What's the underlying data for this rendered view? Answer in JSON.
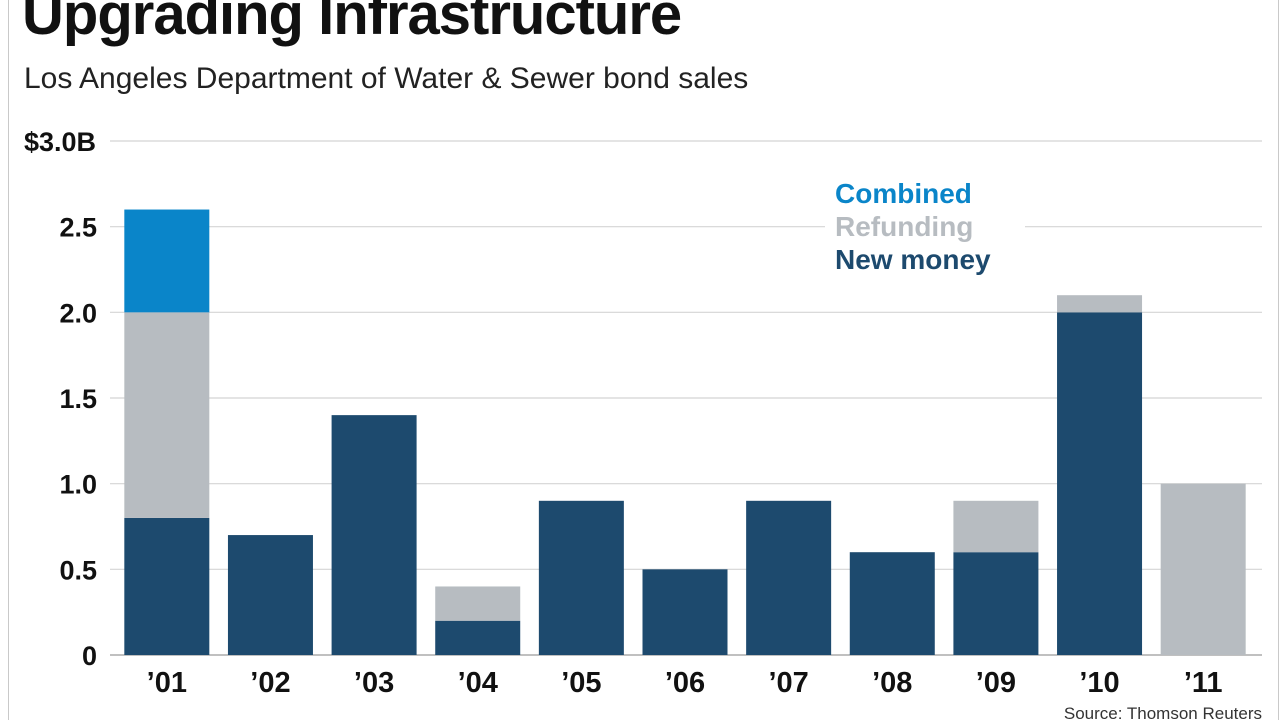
{
  "header": {
    "title": "Upgrading Infrastructure",
    "subtitle": "Los Angeles Department of Water & Sewer bond sales"
  },
  "footer": {
    "source": "Source: Thomson Reuters"
  },
  "colors": {
    "combined": "#0a85c9",
    "refunding": "#b7bcc1",
    "new_money": "#1d4a6e",
    "grid": "#d4d4d4"
  },
  "chart_data": {
    "type": "bar",
    "stacked": true,
    "title": "Upgrading Infrastructure",
    "subtitle": "Los Angeles Department of Water & Sewer bond sales",
    "xlabel": "",
    "ylabel": "",
    "ylim": [
      0,
      3.0
    ],
    "yticks": [
      {
        "value": 0,
        "label": "0"
      },
      {
        "value": 0.5,
        "label": "0.5"
      },
      {
        "value": 1.0,
        "label": "1.0"
      },
      {
        "value": 1.5,
        "label": "1.5"
      },
      {
        "value": 2.0,
        "label": "2.0"
      },
      {
        "value": 2.5,
        "label": "2.5"
      },
      {
        "value": 3.0,
        "label": "$3.0B"
      }
    ],
    "categories": [
      "’01",
      "’02",
      "’03",
      "’04",
      "’05",
      "’06",
      "’07",
      "’08",
      "’09",
      "’10",
      "’11"
    ],
    "series": [
      {
        "name": "New money",
        "color_key": "new_money",
        "values": [
          0.8,
          0.7,
          1.4,
          0.2,
          0.9,
          0.5,
          0.9,
          0.6,
          0.6,
          2.0,
          0
        ]
      },
      {
        "name": "Refunding",
        "color_key": "refunding",
        "values": [
          1.2,
          0,
          0,
          0.2,
          0,
          0,
          0,
          0,
          0.3,
          0.1,
          1.0
        ]
      },
      {
        "name": "Combined",
        "color_key": "combined",
        "values": [
          0.6,
          0,
          0,
          0,
          0,
          0,
          0,
          0,
          0,
          0,
          0
        ]
      }
    ],
    "legend": {
      "position": "top-right",
      "entries": [
        {
          "label": "Combined",
          "color_key": "combined"
        },
        {
          "label": "Refunding",
          "color_key": "refunding"
        },
        {
          "label": "New money",
          "color_key": "new_money"
        }
      ]
    },
    "grid": true,
    "source": "Source: Thomson Reuters"
  }
}
